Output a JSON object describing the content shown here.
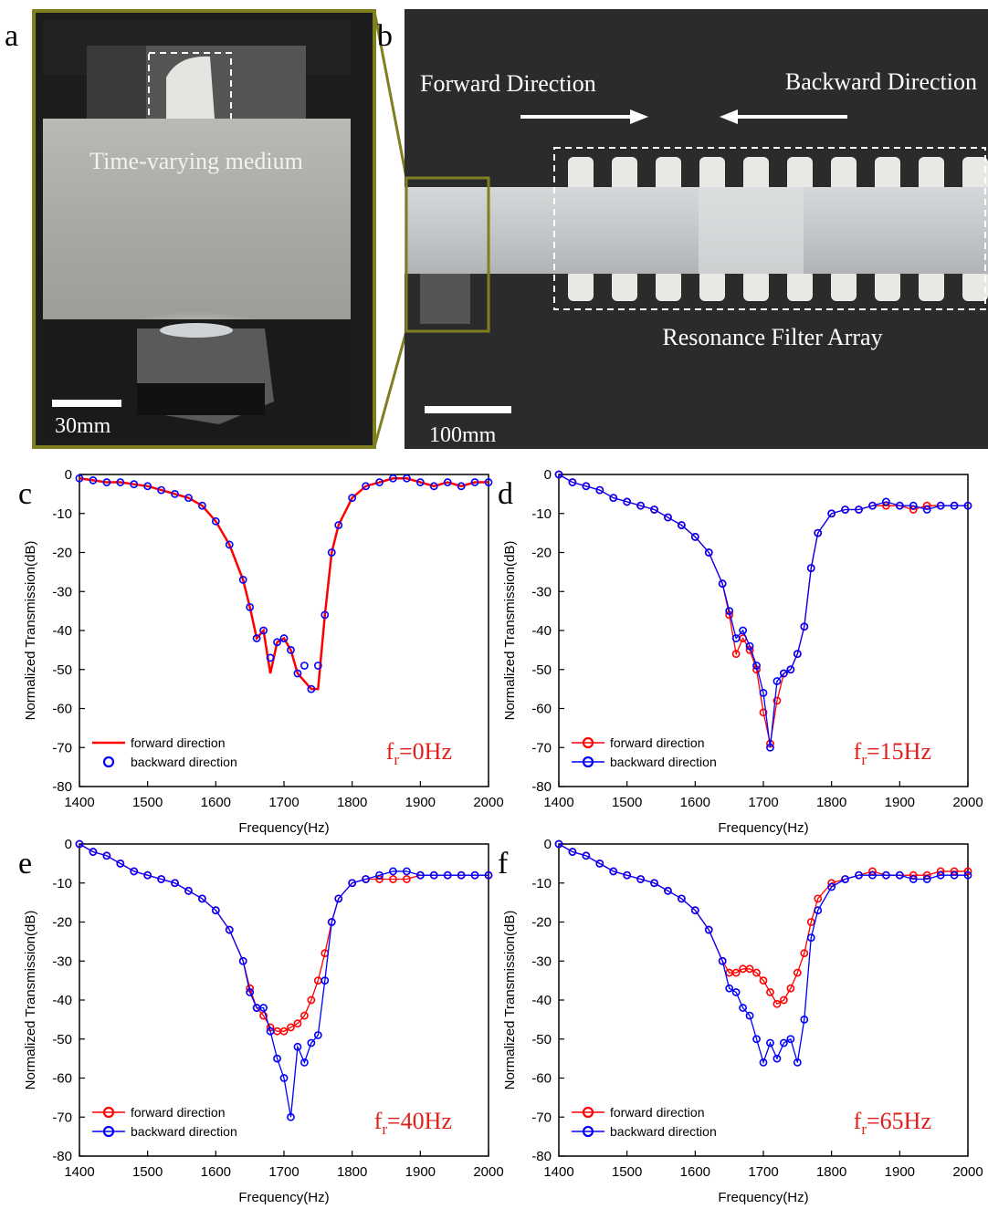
{
  "panel_a": {
    "label": "a",
    "caption": "Time-varying medium",
    "scale": "30mm"
  },
  "panel_b": {
    "label": "b",
    "forward": "Forward Direction",
    "backward": "Backward Direction",
    "array": "Resonance Filter Array",
    "scale": "100mm"
  },
  "chart_data": [
    {
      "type": "line",
      "label": "c",
      "xlabel": "Frequency(Hz)",
      "ylabel": "Normalized Transmission(dB)",
      "xlim": [
        1400,
        2000
      ],
      "ylim": [
        -80,
        0
      ],
      "xticks": [
        1400,
        1500,
        1600,
        1700,
        1800,
        1900,
        2000
      ],
      "yticks": [
        0,
        -10,
        -20,
        -30,
        -40,
        -50,
        -60,
        -70,
        -80
      ],
      "legend": "lower left",
      "annotation": {
        "base": "f",
        "sub": "r",
        "text": "=0Hz"
      },
      "x": [
        1400,
        1420,
        1440,
        1460,
        1480,
        1500,
        1520,
        1540,
        1560,
        1580,
        1600,
        1620,
        1640,
        1650,
        1660,
        1670,
        1680,
        1690,
        1700,
        1710,
        1720,
        1730,
        1740,
        1750,
        1760,
        1770,
        1780,
        1800,
        1820,
        1840,
        1860,
        1880,
        1900,
        1920,
        1940,
        1960,
        1980,
        2000
      ],
      "series": [
        {
          "name": "forward direction",
          "color": "#ff0000",
          "style": "line",
          "values": [
            -1,
            -1.5,
            -2,
            -2,
            -2.5,
            -3,
            -4,
            -5,
            -6,
            -8,
            -12,
            -18,
            -27,
            -34,
            -42,
            -40,
            -51,
            -43,
            -42,
            -45,
            -51,
            -53,
            -55,
            -55,
            -36,
            -20,
            -13,
            -6,
            -3,
            -2,
            -1,
            -1,
            -2,
            -3,
            -2,
            -3,
            -2,
            -2
          ]
        },
        {
          "name": "backward direction",
          "color": "#0000ff",
          "style": "markers",
          "values": [
            -1,
            -1.5,
            -2,
            -2,
            -2.5,
            -3,
            -4,
            -5,
            -6,
            -8,
            -12,
            -18,
            -27,
            -34,
            -42,
            -40,
            -47,
            -43,
            -42,
            -45,
            -51,
            -49,
            -55,
            -49,
            -36,
            -20,
            -13,
            -6,
            -3,
            -2,
            -1,
            -1,
            -2,
            -3,
            -2,
            -3,
            -2,
            -2
          ]
        }
      ]
    },
    {
      "type": "line",
      "label": "d",
      "xlabel": "Frequency(Hz)",
      "ylabel": "Normalized Transmission(dB)",
      "xlim": [
        1400,
        2000
      ],
      "ylim": [
        -80,
        0
      ],
      "xticks": [
        1400,
        1500,
        1600,
        1700,
        1800,
        1900,
        2000
      ],
      "yticks": [
        0,
        -10,
        -20,
        -30,
        -40,
        -50,
        -60,
        -70,
        -80
      ],
      "legend": "lower left",
      "annotation": {
        "base": "f",
        "sub": "r",
        "text": "=15Hz"
      },
      "x": [
        1400,
        1420,
        1440,
        1460,
        1480,
        1500,
        1520,
        1540,
        1560,
        1580,
        1600,
        1620,
        1640,
        1650,
        1660,
        1670,
        1680,
        1690,
        1700,
        1710,
        1720,
        1730,
        1740,
        1750,
        1760,
        1770,
        1780,
        1800,
        1820,
        1840,
        1860,
        1880,
        1900,
        1920,
        1940,
        1960,
        1980,
        2000
      ],
      "series": [
        {
          "name": "forward direction",
          "color": "#ff0000",
          "style": "line+markers",
          "values": [
            0,
            -2,
            -3,
            -4,
            -6,
            -7,
            -8,
            -9,
            -11,
            -13,
            -16,
            -20,
            -28,
            -36,
            -46,
            -42,
            -45,
            -50,
            -61,
            -69,
            -58,
            -51,
            -50,
            -46,
            -39,
            -24,
            -15,
            -10,
            -9,
            -9,
            -8,
            -8,
            -8,
            -9,
            -8,
            -8,
            -8,
            -8
          ]
        },
        {
          "name": "backward direction",
          "color": "#0000ff",
          "style": "line+markers",
          "values": [
            0,
            -2,
            -3,
            -4,
            -6,
            -7,
            -8,
            -9,
            -11,
            -13,
            -16,
            -20,
            -28,
            -35,
            -42,
            -40,
            -44,
            -49,
            -56,
            -70,
            -53,
            -51,
            -50,
            -46,
            -39,
            -24,
            -15,
            -10,
            -9,
            -9,
            -8,
            -7,
            -8,
            -8,
            -9,
            -8,
            -8,
            -8
          ]
        }
      ]
    },
    {
      "type": "line",
      "label": "e",
      "xlabel": "Frequency(Hz)",
      "ylabel": "Normalized Transmission(dB)",
      "xlim": [
        1400,
        2000
      ],
      "ylim": [
        -80,
        0
      ],
      "xticks": [
        1400,
        1500,
        1600,
        1700,
        1800,
        1900,
        2000
      ],
      "yticks": [
        0,
        -10,
        -20,
        -30,
        -40,
        -50,
        -60,
        -70,
        -80
      ],
      "legend": "lower left",
      "annotation": {
        "base": "f",
        "sub": "r",
        "text": "=40Hz"
      },
      "x": [
        1400,
        1420,
        1440,
        1460,
        1480,
        1500,
        1520,
        1540,
        1560,
        1580,
        1600,
        1620,
        1640,
        1650,
        1660,
        1670,
        1680,
        1690,
        1700,
        1710,
        1720,
        1730,
        1740,
        1750,
        1760,
        1770,
        1780,
        1800,
        1820,
        1840,
        1860,
        1880,
        1900,
        1920,
        1940,
        1960,
        1980,
        2000
      ],
      "series": [
        {
          "name": "forward direction",
          "color": "#ff0000",
          "style": "line+markers",
          "values": [
            0,
            -2,
            -3,
            -5,
            -7,
            -8,
            -9,
            -10,
            -12,
            -14,
            -17,
            -22,
            -30,
            -37,
            -42,
            -44,
            -47,
            -48,
            -48,
            -47,
            -46,
            -44,
            -40,
            -35,
            -28,
            -20,
            -14,
            -10,
            -9,
            -9,
            -9,
            -9,
            -8,
            -8,
            -8,
            -8,
            -8,
            -8
          ]
        },
        {
          "name": "backward direction",
          "color": "#0000ff",
          "style": "line+markers",
          "values": [
            0,
            -2,
            -3,
            -5,
            -7,
            -8,
            -9,
            -10,
            -12,
            -14,
            -17,
            -22,
            -30,
            -38,
            -42,
            -42,
            -48,
            -55,
            -60,
            -70,
            -52,
            -56,
            -51,
            -49,
            -35,
            -20,
            -14,
            -10,
            -9,
            -8,
            -7,
            -7,
            -8,
            -8,
            -8,
            -8,
            -8,
            -8
          ]
        }
      ]
    },
    {
      "type": "line",
      "label": "f",
      "xlabel": "Frequency(Hz)",
      "ylabel": "Normalized Transmission(dB)",
      "xlim": [
        1400,
        2000
      ],
      "ylim": [
        -80,
        0
      ],
      "xticks": [
        1400,
        1500,
        1600,
        1700,
        1800,
        1900,
        2000
      ],
      "yticks": [
        0,
        -10,
        -20,
        -30,
        -40,
        -50,
        -60,
        -70,
        -80
      ],
      "legend": "lower left",
      "annotation": {
        "base": "f",
        "sub": "r",
        "text": "=65Hz"
      },
      "x": [
        1400,
        1420,
        1440,
        1460,
        1480,
        1500,
        1520,
        1540,
        1560,
        1580,
        1600,
        1620,
        1640,
        1650,
        1660,
        1670,
        1680,
        1690,
        1700,
        1710,
        1720,
        1730,
        1740,
        1750,
        1760,
        1770,
        1780,
        1800,
        1820,
        1840,
        1860,
        1880,
        1900,
        1920,
        1940,
        1960,
        1980,
        2000
      ],
      "series": [
        {
          "name": "forward direction",
          "color": "#ff0000",
          "style": "line+markers",
          "values": [
            0,
            -2,
            -3,
            -5,
            -7,
            -8,
            -9,
            -10,
            -12,
            -14,
            -17,
            -22,
            -30,
            -33,
            -33,
            -32,
            -32,
            -33,
            -35,
            -38,
            -41,
            -40,
            -37,
            -33,
            -28,
            -20,
            -14,
            -10,
            -9,
            -8,
            -7,
            -8,
            -8,
            -8,
            -8,
            -7,
            -7,
            -7
          ]
        },
        {
          "name": "backward direction",
          "color": "#0000ff",
          "style": "line+markers",
          "values": [
            0,
            -2,
            -3,
            -5,
            -7,
            -8,
            -9,
            -10,
            -12,
            -14,
            -17,
            -22,
            -30,
            -37,
            -38,
            -42,
            -44,
            -50,
            -56,
            -51,
            -55,
            -51,
            -50,
            -56,
            -45,
            -24,
            -17,
            -11,
            -9,
            -8,
            -8,
            -8,
            -8,
            -9,
            -9,
            -8,
            -8,
            -8
          ]
        }
      ]
    }
  ]
}
